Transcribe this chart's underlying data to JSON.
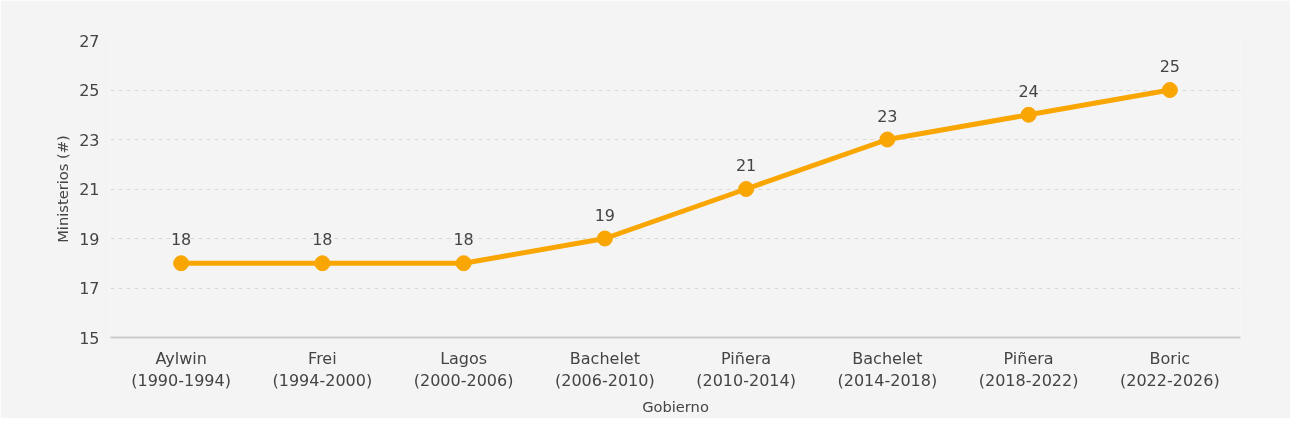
{
  "chart_data": {
    "type": "line",
    "xlabel": "Gobierno",
    "ylabel": "Ministerios (#)",
    "categories": [
      "Aylwin\n(1990-1994)",
      "Frei\n(1994-2000)",
      "Lagos\n(2000-2006)",
      "Bachelet\n(2006-2010)",
      "Piñera\n(2010-2014)",
      "Bachelet\n(2014-2018)",
      "Piñera\n(2018-2022)",
      "Boric\n(2022-2026)"
    ],
    "series": [
      {
        "color": "#f9a602",
        "values": [
          18,
          18,
          18,
          19,
          21,
          23,
          24,
          25
        ]
      }
    ],
    "ylim": [
      15,
      27
    ],
    "yticks": [
      15,
      17,
      19,
      21,
      23,
      25,
      27
    ],
    "grid": "y",
    "data_labels": true,
    "marker": "circle",
    "line_style": "solid"
  }
}
